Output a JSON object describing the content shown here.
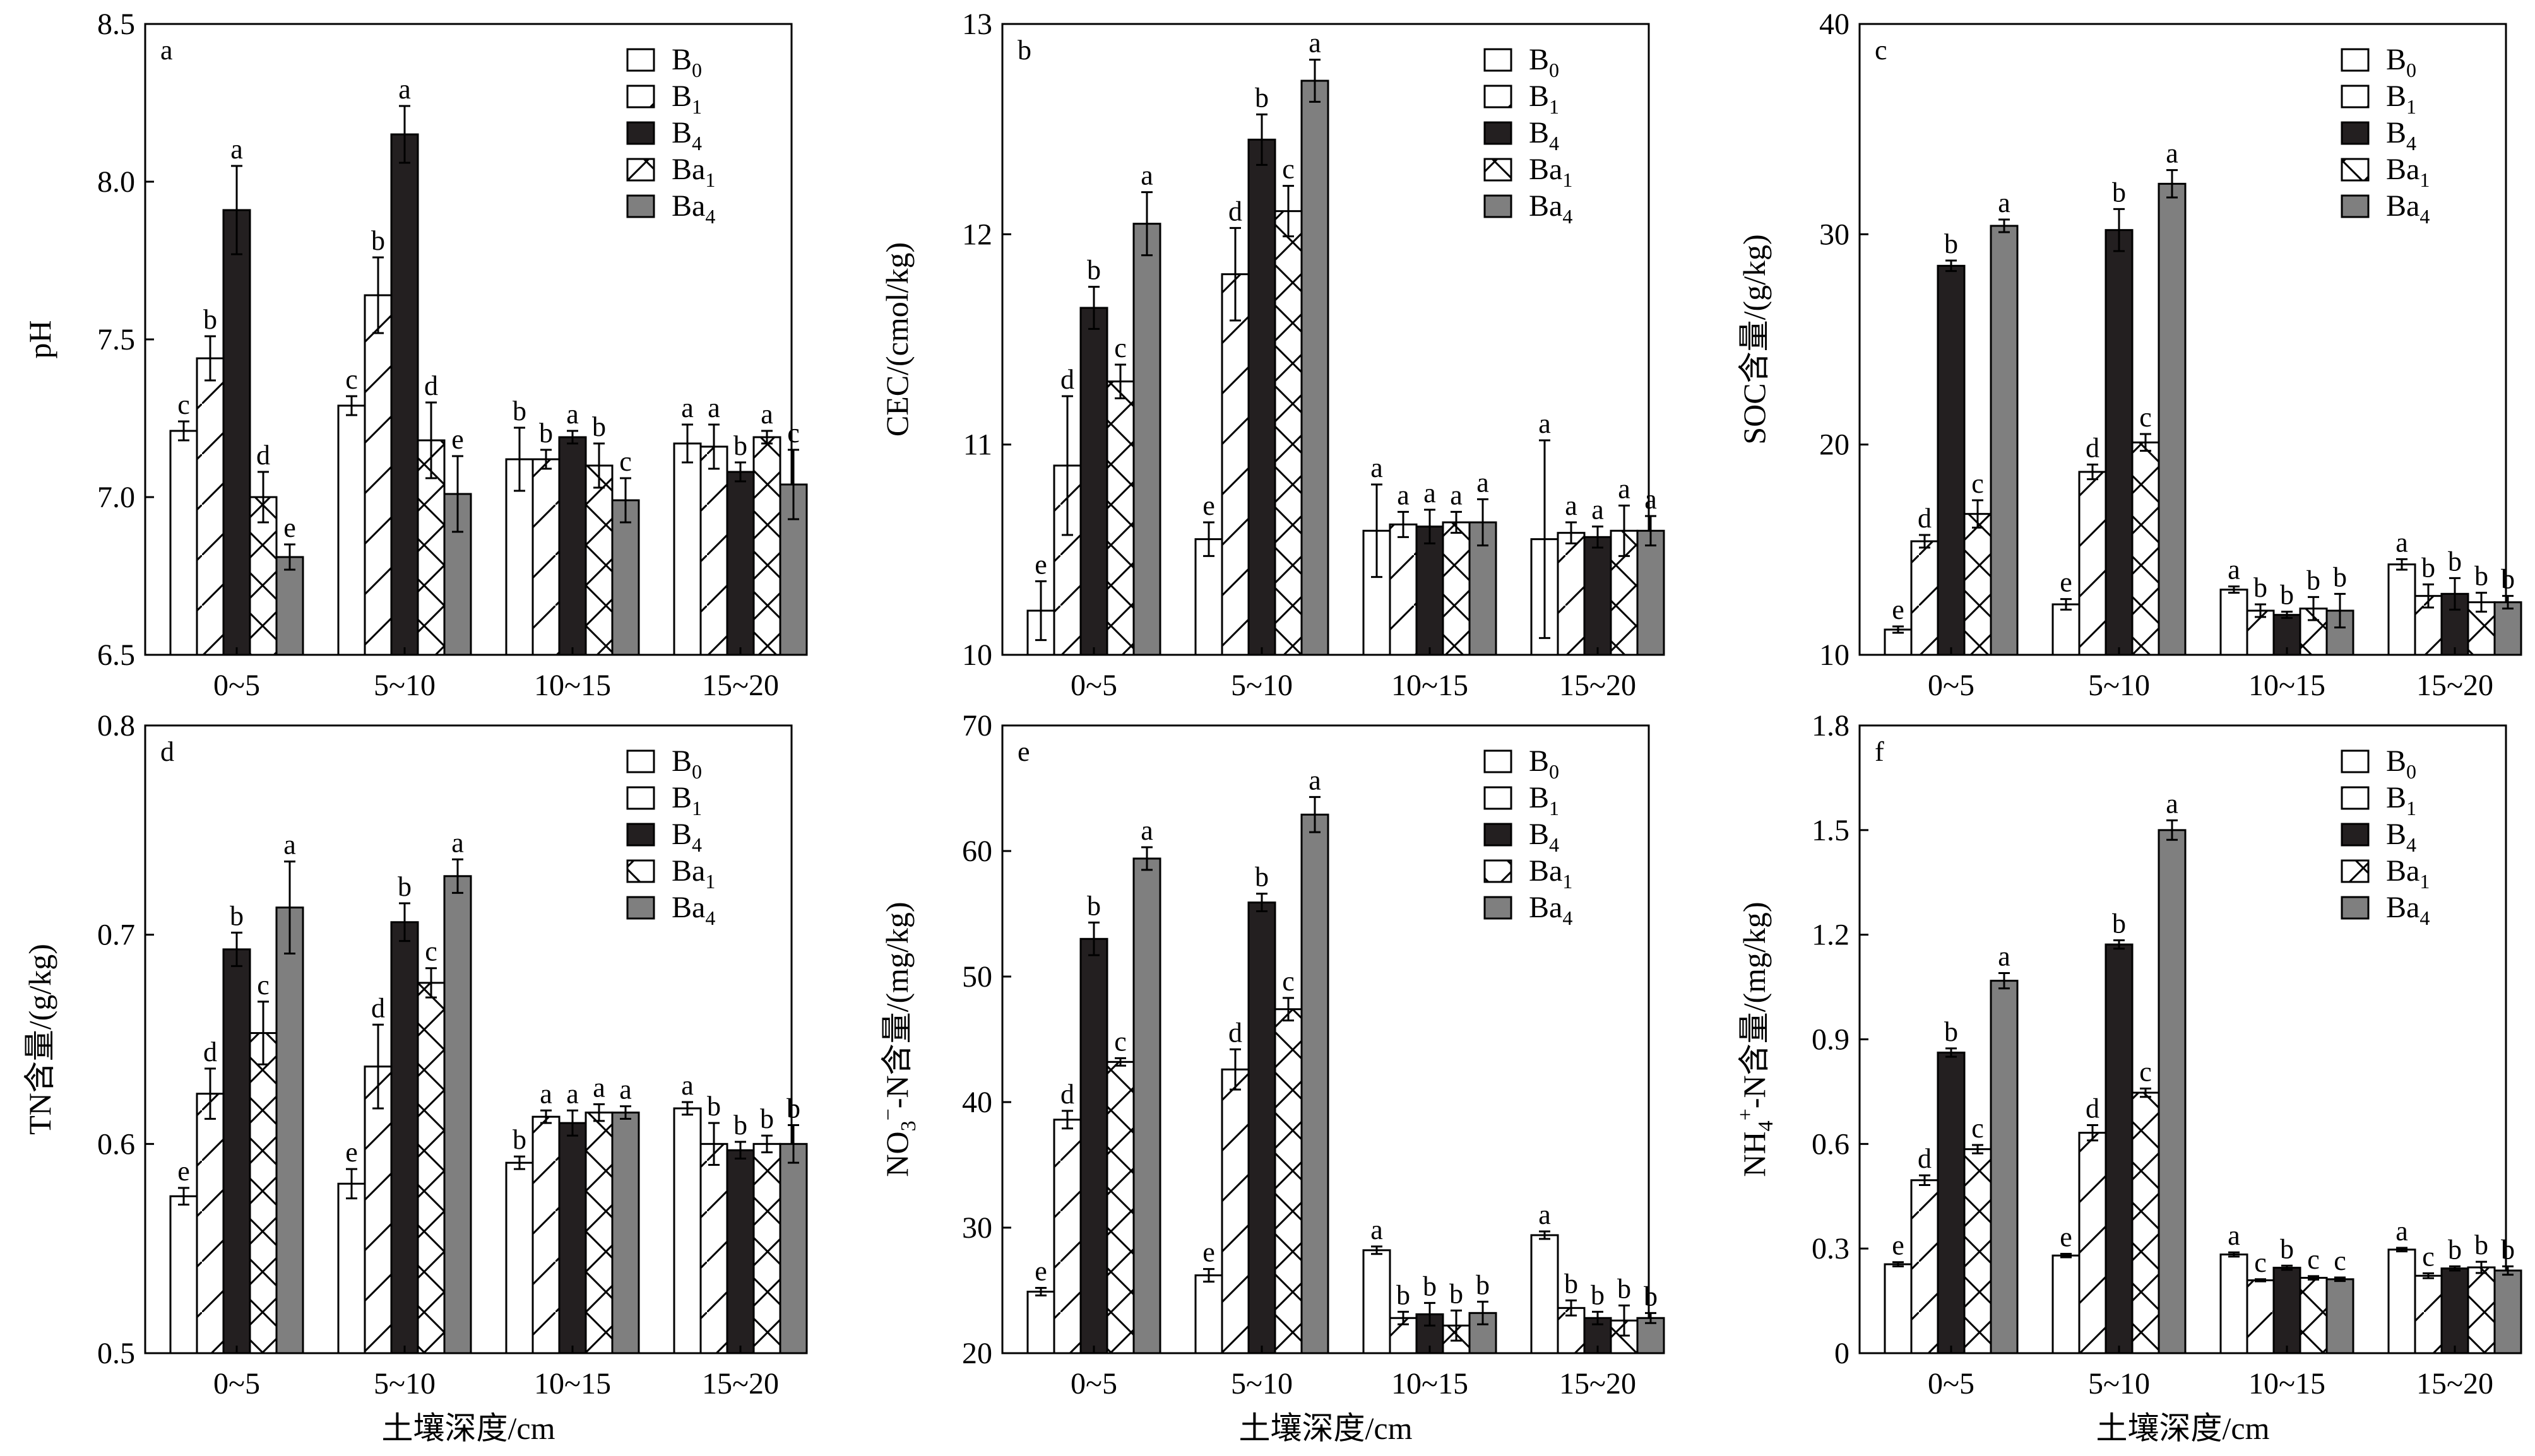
{
  "legend": {
    "entries": [
      {
        "key": "B0",
        "base": "B",
        "sub": "0",
        "pattern": "white"
      },
      {
        "key": "B1",
        "base": "B",
        "sub": "1",
        "pattern": "diag"
      },
      {
        "key": "B4",
        "base": "B",
        "sub": "4",
        "pattern": "black"
      },
      {
        "key": "Ba1",
        "base": "Ba",
        "sub": "1",
        "pattern": "cross"
      },
      {
        "key": "Ba4",
        "base": "Ba",
        "sub": "4",
        "pattern": "gray"
      }
    ]
  },
  "colors": {
    "white": "#ffffff",
    "black": "#231f20",
    "gray": "#7f7f7f",
    "stroke": "#000000"
  },
  "chart_data": [
    {
      "type": "bar",
      "panel": "a",
      "ylabel": {
        "text": "pH"
      },
      "xlabel": "",
      "categories": [
        "0~5",
        "5~10",
        "10~15",
        "15~20"
      ],
      "ylim": [
        6.5,
        8.5
      ],
      "yticks": [
        "6.5",
        "7.0",
        "7.5",
        "8.0",
        "8.5"
      ],
      "series": [
        {
          "name": "B0",
          "values": [
            7.21,
            7.29,
            7.12,
            7.17
          ],
          "errors": [
            0.03,
            0.03,
            0.1,
            0.06
          ],
          "labels": [
            "c",
            "c",
            "b",
            "a"
          ]
        },
        {
          "name": "B1",
          "values": [
            7.44,
            7.64,
            7.12,
            7.16
          ],
          "errors": [
            0.07,
            0.12,
            0.03,
            0.07
          ],
          "labels": [
            "b",
            "b",
            "b",
            "a"
          ]
        },
        {
          "name": "B4",
          "values": [
            7.91,
            8.15,
            7.19,
            7.08
          ],
          "errors": [
            0.14,
            0.09,
            0.02,
            0.03
          ],
          "labels": [
            "a",
            "a",
            "a",
            "b"
          ]
        },
        {
          "name": "Ba1",
          "values": [
            7.0,
            7.18,
            7.1,
            7.19
          ],
          "errors": [
            0.08,
            0.12,
            0.07,
            0.02
          ],
          "labels": [
            "d",
            "d",
            "b",
            "a"
          ]
        },
        {
          "name": "Ba4",
          "values": [
            6.81,
            7.01,
            6.99,
            7.04
          ],
          "errors": [
            0.04,
            0.12,
            0.07,
            0.11
          ],
          "labels": [
            "e",
            "e",
            "c",
            "c"
          ]
        }
      ]
    },
    {
      "type": "bar",
      "panel": "b",
      "ylabel": {
        "text": "CEC/(cmol/kg)"
      },
      "xlabel": "",
      "categories": [
        "0~5",
        "5~10",
        "10~15",
        "15~20"
      ],
      "ylim": [
        10,
        13
      ],
      "yticks": [
        "10",
        "11",
        "12",
        "13"
      ],
      "series": [
        {
          "name": "B0",
          "values": [
            10.21,
            10.55,
            10.59,
            10.55
          ],
          "errors": [
            0.14,
            0.08,
            0.22,
            0.47
          ],
          "labels": [
            "e",
            "e",
            "a",
            "a"
          ]
        },
        {
          "name": "B1",
          "values": [
            10.9,
            11.81,
            10.62,
            10.58
          ],
          "errors": [
            0.33,
            0.22,
            0.06,
            0.05
          ],
          "labels": [
            "d",
            "d",
            "a",
            "a"
          ]
        },
        {
          "name": "B4",
          "values": [
            11.65,
            12.45,
            10.61,
            10.56
          ],
          "errors": [
            0.1,
            0.12,
            0.08,
            0.05
          ],
          "labels": [
            "b",
            "b",
            "a",
            "a"
          ]
        },
        {
          "name": "Ba1",
          "values": [
            11.3,
            12.11,
            10.63,
            10.59
          ],
          "errors": [
            0.08,
            0.12,
            0.05,
            0.12
          ],
          "labels": [
            "c",
            "c",
            "a",
            "a"
          ]
        },
        {
          "name": "Ba4",
          "values": [
            12.05,
            12.73,
            10.63,
            10.59
          ],
          "errors": [
            0.15,
            0.1,
            0.11,
            0.07
          ],
          "labels": [
            "a",
            "a",
            "a",
            "a"
          ]
        }
      ]
    },
    {
      "type": "bar",
      "panel": "c",
      "ylabel": {
        "text": "SOC含量/(g/kg)"
      },
      "xlabel": "",
      "categories": [
        "0~5",
        "5~10",
        "10~15",
        "15~20"
      ],
      "ylim": [
        10,
        40
      ],
      "yticks": [
        "10",
        "20",
        "30",
        "40"
      ],
      "series": [
        {
          "name": "B0",
          "values": [
            11.2,
            12.4,
            13.1,
            14.3
          ],
          "errors": [
            0.15,
            0.25,
            0.15,
            0.25
          ],
          "labels": [
            "e",
            "e",
            "a",
            "a"
          ]
        },
        {
          "name": "B1",
          "values": [
            15.4,
            18.7,
            12.1,
            12.8
          ],
          "errors": [
            0.3,
            0.35,
            0.3,
            0.55
          ],
          "labels": [
            "d",
            "d",
            "b",
            "b"
          ]
        },
        {
          "name": "B4",
          "values": [
            28.5,
            30.2,
            11.9,
            12.9
          ],
          "errors": [
            0.25,
            1.0,
            0.15,
            0.75
          ],
          "labels": [
            "b",
            "b",
            "b",
            "b"
          ]
        },
        {
          "name": "Ba1",
          "values": [
            16.7,
            20.1,
            12.2,
            12.5
          ],
          "errors": [
            0.65,
            0.4,
            0.55,
            0.45
          ],
          "labels": [
            "c",
            "c",
            "b",
            "b"
          ]
        },
        {
          "name": "Ba4",
          "values": [
            30.4,
            32.4,
            12.1,
            12.5
          ],
          "errors": [
            0.3,
            0.65,
            0.8,
            0.3
          ],
          "labels": [
            "a",
            "a",
            "b",
            "b"
          ]
        }
      ]
    },
    {
      "type": "bar",
      "panel": "d",
      "ylabel": {
        "text": "TN含量/(g/kg)"
      },
      "xlabel": "土壤深度/cm",
      "categories": [
        "0~5",
        "5~10",
        "10~15",
        "15~20"
      ],
      "ylim": [
        0.5,
        0.8
      ],
      "yticks": [
        "0.5",
        "0.6",
        "0.7",
        "0.8"
      ],
      "series": [
        {
          "name": "B0",
          "values": [
            0.575,
            0.581,
            0.591,
            0.617
          ],
          "errors": [
            0.004,
            0.007,
            0.003,
            0.003
          ],
          "labels": [
            "e",
            "e",
            "b",
            "a"
          ]
        },
        {
          "name": "B1",
          "values": [
            0.624,
            0.637,
            0.613,
            0.6
          ],
          "errors": [
            0.012,
            0.02,
            0.003,
            0.01
          ],
          "labels": [
            "d",
            "d",
            "a",
            "b"
          ]
        },
        {
          "name": "B4",
          "values": [
            0.693,
            0.706,
            0.61,
            0.597
          ],
          "errors": [
            0.008,
            0.009,
            0.006,
            0.004
          ],
          "labels": [
            "b",
            "b",
            "a",
            "b"
          ]
        },
        {
          "name": "Ba1",
          "values": [
            0.653,
            0.677,
            0.615,
            0.6
          ],
          "errors": [
            0.015,
            0.007,
            0.004,
            0.004
          ],
          "labels": [
            "c",
            "c",
            "a",
            "b"
          ]
        },
        {
          "name": "Ba4",
          "values": [
            0.713,
            0.728,
            0.615,
            0.6
          ],
          "errors": [
            0.022,
            0.008,
            0.003,
            0.009
          ],
          "labels": [
            "a",
            "a",
            "a",
            "b"
          ]
        }
      ]
    },
    {
      "type": "bar",
      "panel": "e",
      "ylabel": {
        "text": "NO3−-N含量/(mg/kg)",
        "base": "NO",
        "sub": "3",
        "sup": "−",
        "rest": "-N含量/(mg/kg)"
      },
      "xlabel": "土壤深度/cm",
      "categories": [
        "0~5",
        "5~10",
        "10~15",
        "15~20"
      ],
      "ylim": [
        20,
        70
      ],
      "yticks": [
        "20",
        "30",
        "40",
        "50",
        "60",
        "70"
      ],
      "series": [
        {
          "name": "B0",
          "values": [
            24.9,
            26.2,
            28.2,
            29.4
          ],
          "errors": [
            0.3,
            0.5,
            0.3,
            0.3
          ],
          "labels": [
            "e",
            "e",
            "a",
            "a"
          ]
        },
        {
          "name": "B1",
          "values": [
            38.6,
            42.6,
            22.8,
            23.6
          ],
          "errors": [
            0.7,
            1.6,
            0.5,
            0.6
          ],
          "labels": [
            "d",
            "d",
            "b",
            "b"
          ]
        },
        {
          "name": "B4",
          "values": [
            53.0,
            55.9,
            23.1,
            22.8
          ],
          "errors": [
            1.3,
            0.7,
            0.9,
            0.5
          ],
          "labels": [
            "b",
            "b",
            "b",
            "b"
          ]
        },
        {
          "name": "Ba1",
          "values": [
            43.2,
            47.4,
            22.2,
            22.6
          ],
          "errors": [
            0.3,
            0.9,
            1.2,
            1.2
          ],
          "labels": [
            "c",
            "c",
            "b",
            "b"
          ]
        },
        {
          "name": "Ba4",
          "values": [
            59.4,
            62.9,
            23.2,
            22.8
          ],
          "errors": [
            0.9,
            1.4,
            0.9,
            0.4
          ],
          "labels": [
            "a",
            "a",
            "b",
            "b"
          ]
        }
      ]
    },
    {
      "type": "bar",
      "panel": "f",
      "ylabel": {
        "text": "NH4+-N含量/(mg/kg)",
        "base": "NH",
        "sub": "4",
        "sup": "+",
        "rest": "-N含量/(mg/kg)"
      },
      "xlabel": "土壤深度/cm",
      "categories": [
        "0~5",
        "5~10",
        "10~15",
        "15~20"
      ],
      "ylim": [
        0,
        1.8
      ],
      "yticks": [
        "0",
        "0.3",
        "0.6",
        "0.9",
        "1.2",
        "1.5",
        "1.8"
      ],
      "series": [
        {
          "name": "B0",
          "values": [
            0.255,
            0.28,
            0.283,
            0.297
          ],
          "errors": [
            0.006,
            0.005,
            0.006,
            0.005
          ],
          "labels": [
            "e",
            "e",
            "a",
            "a"
          ]
        },
        {
          "name": "B1",
          "values": [
            0.496,
            0.632,
            0.209,
            0.222
          ],
          "errors": [
            0.014,
            0.022,
            0.003,
            0.007
          ],
          "labels": [
            "d",
            "d",
            "c",
            "c"
          ]
        },
        {
          "name": "B4",
          "values": [
            0.862,
            1.172,
            0.245,
            0.243
          ],
          "errors": [
            0.012,
            0.012,
            0.006,
            0.006
          ],
          "labels": [
            "b",
            "b",
            "b",
            "b"
          ]
        },
        {
          "name": "Ba1",
          "values": [
            0.585,
            0.747,
            0.216,
            0.246
          ],
          "errors": [
            0.012,
            0.012,
            0.005,
            0.016
          ],
          "labels": [
            "c",
            "c",
            "c",
            "b"
          ]
        },
        {
          "name": "Ba4",
          "values": [
            1.068,
            1.5,
            0.212,
            0.237
          ],
          "errors": [
            0.022,
            0.028,
            0.005,
            0.012
          ],
          "labels": [
            "a",
            "a",
            "c",
            "b"
          ]
        }
      ]
    }
  ]
}
